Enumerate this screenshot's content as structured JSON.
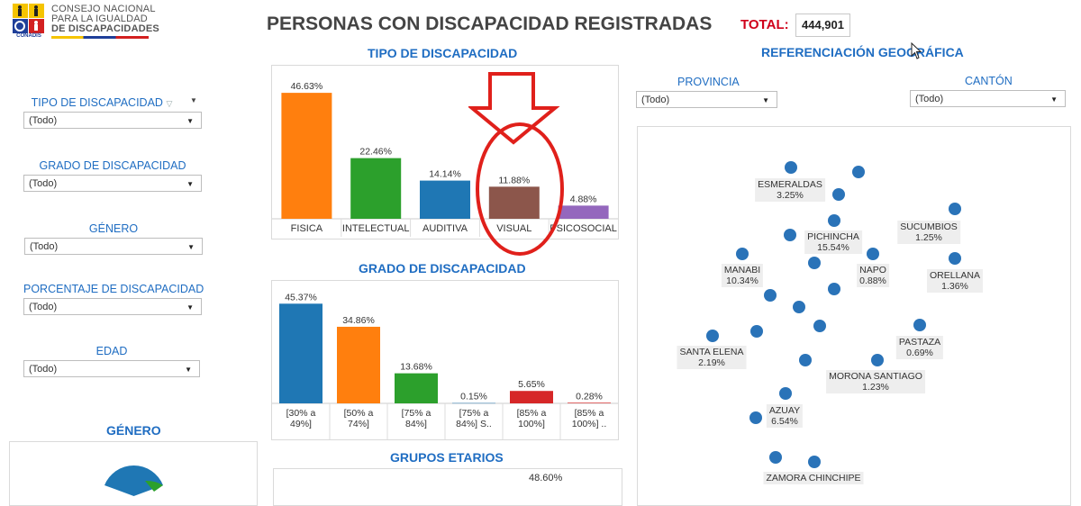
{
  "header": {
    "org_line1": "CONSEJO NACIONAL",
    "org_line2": "PARA LA IGUALDAD",
    "org_line3": "DE DISCAPACIDADES",
    "logo_caption": "CONADIS",
    "title": "PERSONAS CON DISCAPACIDAD REGISTRADAS",
    "total_label": "TOTAL:",
    "total_value": "444,901"
  },
  "filters": [
    {
      "label": "TIPO DE DISCAPACIDAD",
      "value": "(Todo)"
    },
    {
      "label": "GRADO DE DISCAPACIDAD",
      "value": "(Todo)"
    },
    {
      "label": "GÉNERO",
      "value": "(Todo)"
    },
    {
      "label": "PORCENTAJE DE DISCAPACIDAD",
      "value": "(Todo)"
    },
    {
      "label": "EDAD",
      "value": "(Todo)"
    }
  ],
  "genero_title": "GÉNERO",
  "geo": {
    "title": "REFERENCIACIÓN GEOGRÁFICA",
    "provincia_label": "PROVINCIA",
    "provincia_value": "(Todo)",
    "canton_label": "CANTÓN",
    "canton_value": "(Todo)",
    "labels": [
      {
        "name": "ESMERALDAS",
        "pct": "3.25%"
      },
      {
        "name": "SUCUMBIOS",
        "pct": "1.25%"
      },
      {
        "name": "PICHINCHA",
        "pct": "15.54%"
      },
      {
        "name": "MANABI",
        "pct": "10.34%"
      },
      {
        "name": "NAPO",
        "pct": "0.88%"
      },
      {
        "name": "ORELLANA",
        "pct": "1.36%"
      },
      {
        "name": "PASTAZA",
        "pct": "0.69%"
      },
      {
        "name": "SANTA ELENA",
        "pct": "2.19%"
      },
      {
        "name": "MORONA SANTIAGO",
        "pct": "1.23%"
      },
      {
        "name": "AZUAY",
        "pct": "6.54%"
      },
      {
        "name": "ZAMORA CHINCHIPE",
        "pct": ""
      }
    ]
  },
  "colors": {
    "blue": "#1f77b4",
    "orange": "#ff7f0e",
    "green": "#2ca02c",
    "brown": "#8c564b",
    "purple": "#9467bd",
    "red": "#d62728",
    "annotation": "#e0201b",
    "title_blue": "#1f6dc2"
  },
  "chart_data": [
    {
      "type": "bar",
      "title": "TIPO DE DISCAPACIDAD",
      "categories": [
        "FISICA",
        "INTELECTUAL",
        "AUDITIVA",
        "VISUAL",
        "PSICOSOCIAL"
      ],
      "values": [
        46.63,
        22.46,
        14.14,
        11.88,
        4.88
      ],
      "value_labels": [
        "46.63%",
        "22.46%",
        "14.14%",
        "11.88%",
        "4.88%"
      ],
      "bar_colors": [
        "#ff7f0e",
        "#2ca02c",
        "#1f77b4",
        "#8c564b",
        "#9467bd"
      ],
      "ylim": [
        0,
        50
      ]
    },
    {
      "type": "bar",
      "title": "GRADO DE DISCAPACIDAD",
      "categories": [
        "[30% a 49%]",
        "[50% a 74%]",
        "[75% a 84%]",
        "[75% a 84%] S..",
        "[85% a 100%]",
        "[85% a 100%] .."
      ],
      "category_lines": [
        [
          "[30% a",
          "49%]"
        ],
        [
          "[50% a",
          "74%]"
        ],
        [
          "[75% a",
          "84%]"
        ],
        [
          "[75% a",
          "84%] S.."
        ],
        [
          "[85% a",
          "100%]"
        ],
        [
          "[85% a",
          "100%] .."
        ]
      ],
      "values": [
        45.37,
        34.86,
        13.68,
        0.15,
        5.65,
        0.28
      ],
      "value_labels": [
        "45.37%",
        "34.86%",
        "13.68%",
        "0.15%",
        "5.65%",
        "0.28%"
      ],
      "bar_colors": [
        "#1f77b4",
        "#ff7f0e",
        "#2ca02c",
        "#1f77b4",
        "#d62728",
        "#d62728"
      ],
      "ylim": [
        0,
        50
      ]
    },
    {
      "type": "bar",
      "title": "GRUPOS ETARIOS",
      "value_labels": [
        "48.60%"
      ]
    }
  ]
}
